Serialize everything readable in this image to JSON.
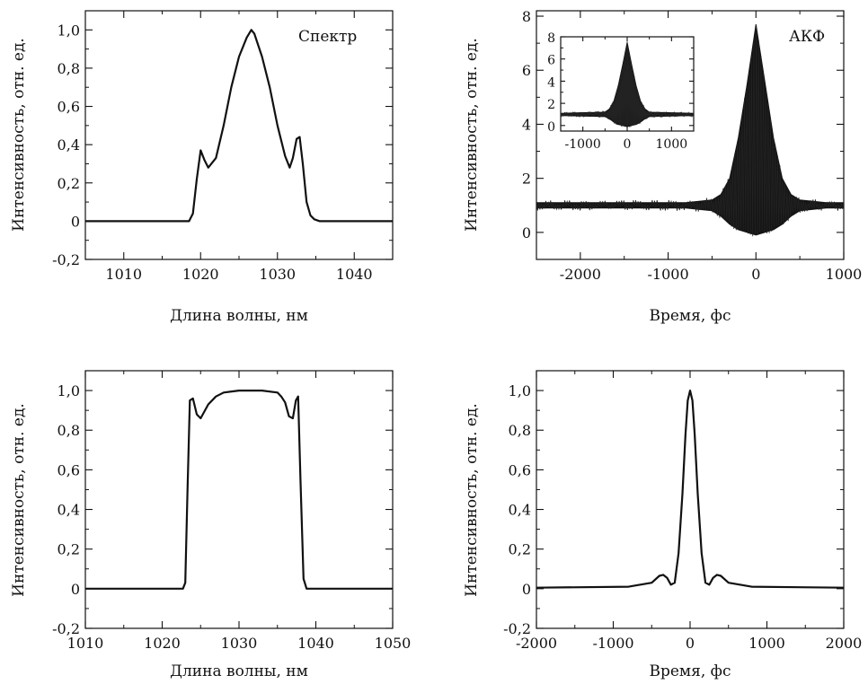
{
  "chart_data": [
    {
      "type": "line",
      "id": "spectrum-measured",
      "annotation": "Спектр",
      "xlabel": "Длина волны, нм",
      "ylabel": "Интенсивность, отн. ед.",
      "xlim": [
        1005,
        1045
      ],
      "ylim": [
        -0.2,
        1.1
      ],
      "xticks": [
        1010,
        1020,
        1030,
        1040
      ],
      "xtick_labels": [
        "1010",
        "1020",
        "1030",
        "1040"
      ],
      "yticks": [
        -0.2,
        0,
        0.2,
        0.4,
        0.6,
        0.8,
        1.0
      ],
      "ytick_labels": [
        "-0,2",
        "0",
        "0,2",
        "0,4",
        "0,6",
        "0,8",
        "1,0"
      ],
      "grid": false,
      "x": [
        1005,
        1018.5,
        1019.0,
        1019.5,
        1020.0,
        1020.5,
        1021.0,
        1022.0,
        1023.0,
        1024.0,
        1025.0,
        1026.0,
        1026.6,
        1027.0,
        1028.0,
        1029.0,
        1030.0,
        1031.0,
        1031.6,
        1032.0,
        1032.5,
        1032.9,
        1033.3,
        1033.8,
        1034.3,
        1034.8,
        1035.5,
        1045
      ],
      "values": [
        0,
        0,
        0.04,
        0.22,
        0.37,
        0.32,
        0.28,
        0.33,
        0.5,
        0.7,
        0.86,
        0.96,
        1.0,
        0.98,
        0.86,
        0.7,
        0.5,
        0.34,
        0.28,
        0.33,
        0.43,
        0.44,
        0.3,
        0.1,
        0.03,
        0.01,
        0,
        0
      ]
    },
    {
      "type": "area",
      "id": "autocorrelation-measured",
      "annotation": "АКФ",
      "xlabel": "Время, фс",
      "ylabel": "Интенсивность, отн. ед.",
      "xlim": [
        -2500,
        1000
      ],
      "ylim": [
        -1,
        8.2
      ],
      "xticks": [
        -2000,
        -1000,
        0,
        1000
      ],
      "xtick_labels": [
        "-2000",
        "-1000",
        "0",
        "1000"
      ],
      "yticks": [
        0,
        2,
        4,
        6,
        8
      ],
      "ytick_labels": [
        "0",
        "2",
        "4",
        "6",
        "8"
      ],
      "grid": false,
      "x": [
        -2500,
        -1500,
        -800,
        -500,
        -400,
        -300,
        -200,
        -100,
        0,
        100,
        200,
        300,
        400,
        500,
        800,
        1000
      ],
      "upper": [
        1.1,
        1.1,
        1.1,
        1.2,
        1.4,
        2.0,
        3.5,
        5.5,
        7.7,
        5.6,
        3.5,
        2.0,
        1.4,
        1.2,
        1.1,
        1.1
      ],
      "lower": [
        0.9,
        0.9,
        0.9,
        0.8,
        0.6,
        0.3,
        0.1,
        0.0,
        -0.1,
        0.0,
        0.1,
        0.3,
        0.6,
        0.8,
        0.9,
        0.9
      ],
      "inset": {
        "xlim": [
          -1500,
          1500
        ],
        "ylim": [
          -0.5,
          8
        ],
        "xticks": [
          -1000,
          0,
          1000
        ],
        "xtick_labels": [
          "-1000",
          "0",
          "1000"
        ],
        "yticks": [
          0,
          2,
          4,
          6,
          8
        ],
        "ytick_labels": [
          "0",
          "2",
          "4",
          "6",
          "8"
        ],
        "x": [
          -1500,
          -500,
          -400,
          -300,
          -200,
          -100,
          0,
          100,
          200,
          300,
          400,
          500,
          1500
        ],
        "upper": [
          1.1,
          1.2,
          1.5,
          2.2,
          3.6,
          5.5,
          7.5,
          5.5,
          3.6,
          2.2,
          1.5,
          1.2,
          1.1
        ],
        "lower": [
          0.9,
          0.8,
          0.6,
          0.3,
          0.1,
          0.0,
          -0.1,
          0.0,
          0.1,
          0.3,
          0.6,
          0.8,
          0.9
        ]
      }
    },
    {
      "type": "line",
      "id": "spectrum-model",
      "xlabel": "Длина волны, нм",
      "ylabel": "Интенсивность, отн. ед.",
      "xlim": [
        1010,
        1050
      ],
      "ylim": [
        -0.2,
        1.1
      ],
      "xticks": [
        1010,
        1020,
        1030,
        1040,
        1050
      ],
      "xtick_labels": [
        "1010",
        "1020",
        "1030",
        "1040",
        "1050"
      ],
      "yticks": [
        -0.2,
        0,
        0.2,
        0.4,
        0.6,
        0.8,
        1.0
      ],
      "ytick_labels": [
        "-0,2",
        "0",
        "0,2",
        "0,4",
        "0,6",
        "0,8",
        "1,0"
      ],
      "grid": false,
      "x": [
        1010,
        1022.7,
        1023.0,
        1023.3,
        1023.6,
        1024.0,
        1024.5,
        1025.0,
        1026.0,
        1027.0,
        1028.0,
        1030.0,
        1033.0,
        1035.0,
        1035.5,
        1036.0,
        1036.5,
        1037.0,
        1037.4,
        1037.7,
        1038.0,
        1038.4,
        1038.8,
        1050
      ],
      "values": [
        0,
        0,
        0.03,
        0.5,
        0.95,
        0.96,
        0.88,
        0.86,
        0.93,
        0.97,
        0.99,
        1.0,
        1.0,
        0.99,
        0.97,
        0.94,
        0.87,
        0.86,
        0.95,
        0.97,
        0.55,
        0.05,
        0,
        0
      ]
    },
    {
      "type": "line",
      "id": "autocorrelation-model",
      "xlabel": "Время, фс",
      "ylabel": "Интенсивность, отн. ед.",
      "xlim": [
        -2000,
        2000
      ],
      "ylim": [
        -0.2,
        1.1
      ],
      "xticks": [
        -2000,
        -1000,
        0,
        1000,
        2000
      ],
      "xtick_labels": [
        "-2000",
        "-1000",
        "0",
        "1000",
        "2000"
      ],
      "yticks": [
        -0.2,
        0,
        0.2,
        0.4,
        0.6,
        0.8,
        1.0
      ],
      "ytick_labels": [
        "-0,2",
        "0",
        "0,2",
        "0,4",
        "0,6",
        "0,8",
        "1,0"
      ],
      "grid": false,
      "x": [
        -2000,
        -800,
        -500,
        -400,
        -350,
        -300,
        -250,
        -200,
        -150,
        -100,
        -60,
        -30,
        0,
        30,
        60,
        100,
        150,
        200,
        250,
        300,
        350,
        400,
        500,
        800,
        2000
      ],
      "values": [
        0.005,
        0.01,
        0.03,
        0.065,
        0.07,
        0.055,
        0.02,
        0.03,
        0.18,
        0.48,
        0.78,
        0.95,
        1.0,
        0.95,
        0.78,
        0.48,
        0.18,
        0.03,
        0.02,
        0.055,
        0.07,
        0.065,
        0.03,
        0.01,
        0.005
      ]
    }
  ]
}
